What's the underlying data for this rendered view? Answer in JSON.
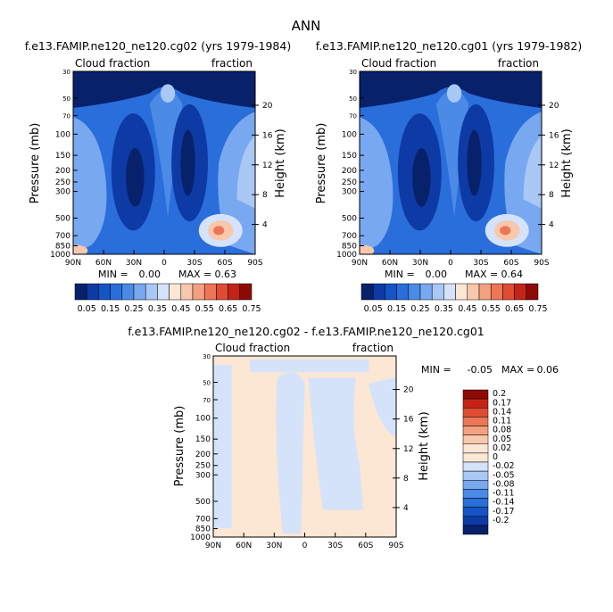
{
  "page_title": "ANN",
  "chart_data": [
    {
      "type": "heatmap",
      "title": "f.e13.FAMIP.ne120_ne120.cg02 (yrs 1979-1984)",
      "left_header": "Cloud fraction",
      "right_header": "fraction",
      "ylabel": "Pressure (mb)",
      "y2label": "Height (km)",
      "x_ticks": [
        "90N",
        "60N",
        "30N",
        "0",
        "30S",
        "60S",
        "90S"
      ],
      "y_ticks": [
        30,
        50,
        70,
        100,
        150,
        200,
        250,
        300,
        500,
        700,
        850,
        1000
      ],
      "y2_ticks": [
        20,
        16,
        12,
        8,
        4
      ],
      "stats": {
        "min_label": "MIN =",
        "min": "0.00",
        "max_label": "MAX =",
        "max": "0.63"
      },
      "colorbar_levels": [
        "0.05",
        "0.1",
        "0.15",
        "0.2",
        "0.25",
        "0.3",
        "0.35",
        "0.4",
        "0.45",
        "0.5",
        "0.55",
        "0.6",
        "0.65",
        "0.7",
        "0.75"
      ],
      "colorbar_labels": [
        "0.05",
        "0.15",
        "0.25",
        "0.35",
        "0.45",
        "0.55",
        "0.65",
        "0.75"
      ],
      "colors": [
        "#08216b",
        "#0d3aa5",
        "#1554c5",
        "#2a6edb",
        "#4b8ae6",
        "#78a8ef",
        "#a9c8f5",
        "#d4e3fa",
        "#fce6d4",
        "#f8c8ad",
        "#f4a080",
        "#ec7656",
        "#df4b33",
        "#c42417",
        "#8e0a06"
      ]
    },
    {
      "type": "heatmap",
      "title": "f.e13.FAMIP.ne120_ne120.cg01 (yrs 1979-1982)",
      "left_header": "Cloud fraction",
      "right_header": "fraction",
      "ylabel": "Pressure (mb)",
      "y2label": "Height (km)",
      "x_ticks": [
        "90N",
        "60N",
        "30N",
        "0",
        "30S",
        "60S",
        "90S"
      ],
      "y_ticks": [
        30,
        50,
        70,
        100,
        150,
        200,
        250,
        300,
        500,
        700,
        850,
        1000
      ],
      "y2_ticks": [
        20,
        16,
        12,
        8,
        4
      ],
      "stats": {
        "min_label": "MIN =",
        "min": "0.00",
        "max_label": "MAX =",
        "max": "0.64"
      },
      "colorbar_levels": [
        "0.05",
        "0.1",
        "0.15",
        "0.2",
        "0.25",
        "0.3",
        "0.35",
        "0.4",
        "0.45",
        "0.5",
        "0.55",
        "0.6",
        "0.65",
        "0.7",
        "0.75"
      ],
      "colorbar_labels": [
        "0.05",
        "0.15",
        "0.25",
        "0.35",
        "0.45",
        "0.55",
        "0.65",
        "0.75"
      ],
      "colors": [
        "#08216b",
        "#0d3aa5",
        "#1554c5",
        "#2a6edb",
        "#4b8ae6",
        "#78a8ef",
        "#a9c8f5",
        "#d4e3fa",
        "#fce6d4",
        "#f8c8ad",
        "#f4a080",
        "#ec7656",
        "#df4b33",
        "#c42417",
        "#8e0a06"
      ]
    },
    {
      "type": "heatmap",
      "title": "f.e13.FAMIP.ne120_ne120.cg02 - f.e13.FAMIP.ne120_ne120.cg01",
      "left_header": "Cloud fraction",
      "right_header": "fraction",
      "ylabel": "Pressure (mb)",
      "y2label": "Height (km)",
      "x_ticks": [
        "90N",
        "60N",
        "30N",
        "0",
        "30S",
        "60S",
        "90S"
      ],
      "y_ticks": [
        30,
        50,
        70,
        100,
        150,
        200,
        250,
        300,
        500,
        700,
        850,
        1000
      ],
      "y2_ticks": [
        20,
        16,
        12,
        8,
        4
      ],
      "stats": {
        "min_label": "MIN =",
        "min": "-0.05",
        "max_label": "MAX =",
        "max": "0.06"
      },
      "colorbar_labels": [
        "0.2",
        "0.17",
        "0.14",
        "0.11",
        "0.08",
        "0.05",
        "0.02",
        "0",
        "-0.02",
        "-0.05",
        "-0.08",
        "-0.11",
        "-0.14",
        "-0.17",
        "-0.2"
      ],
      "colors": [
        "#8e0a06",
        "#c42417",
        "#df4b33",
        "#ec7656",
        "#f4a080",
        "#f8c8ad",
        "#fce6d4",
        "#fce6d4",
        "#d4e3fa",
        "#a9c8f5",
        "#78a8ef",
        "#4b8ae6",
        "#2a6edb",
        "#1554c5",
        "#0d3aa5",
        "#08216b"
      ]
    }
  ]
}
